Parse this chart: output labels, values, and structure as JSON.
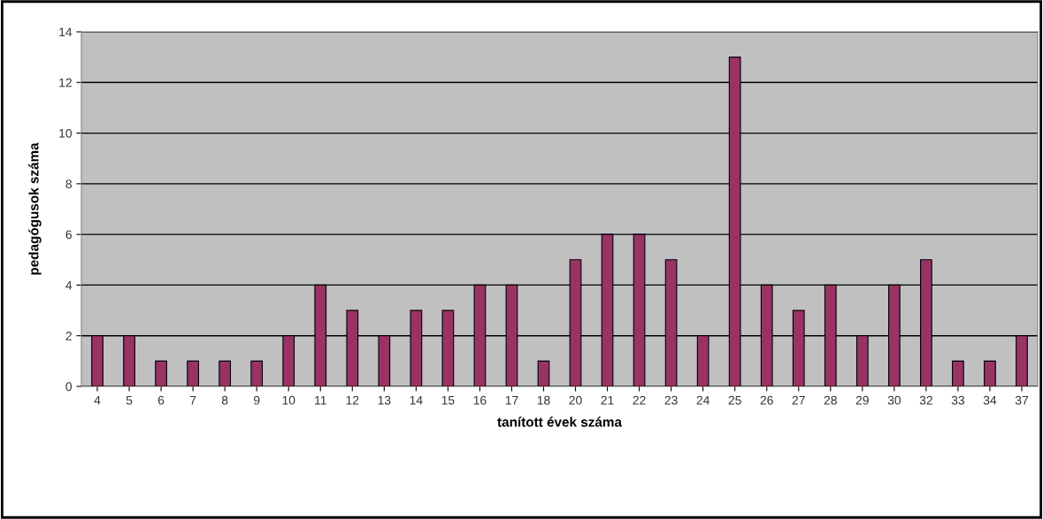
{
  "chart_data": {
    "type": "bar",
    "xlabel": "tanított évek száma",
    "ylabel": "pedagógusok száma",
    "categories": [
      "4",
      "5",
      "6",
      "7",
      "8",
      "9",
      "10",
      "11",
      "12",
      "13",
      "14",
      "15",
      "16",
      "17",
      "18",
      "20",
      "21",
      "22",
      "23",
      "24",
      "25",
      "26",
      "27",
      "28",
      "29",
      "30",
      "32",
      "33",
      "34",
      "37"
    ],
    "values": [
      2,
      2,
      1,
      1,
      1,
      1,
      2,
      4,
      3,
      2,
      3,
      3,
      4,
      4,
      1,
      5,
      6,
      6,
      5,
      2,
      13,
      4,
      3,
      4,
      2,
      4,
      5,
      1,
      1,
      2
    ],
    "color": "#993366",
    "ylim": [
      0,
      14
    ],
    "yticks": [
      0,
      2,
      4,
      6,
      8,
      10,
      12,
      14
    ],
    "grid": "y"
  }
}
